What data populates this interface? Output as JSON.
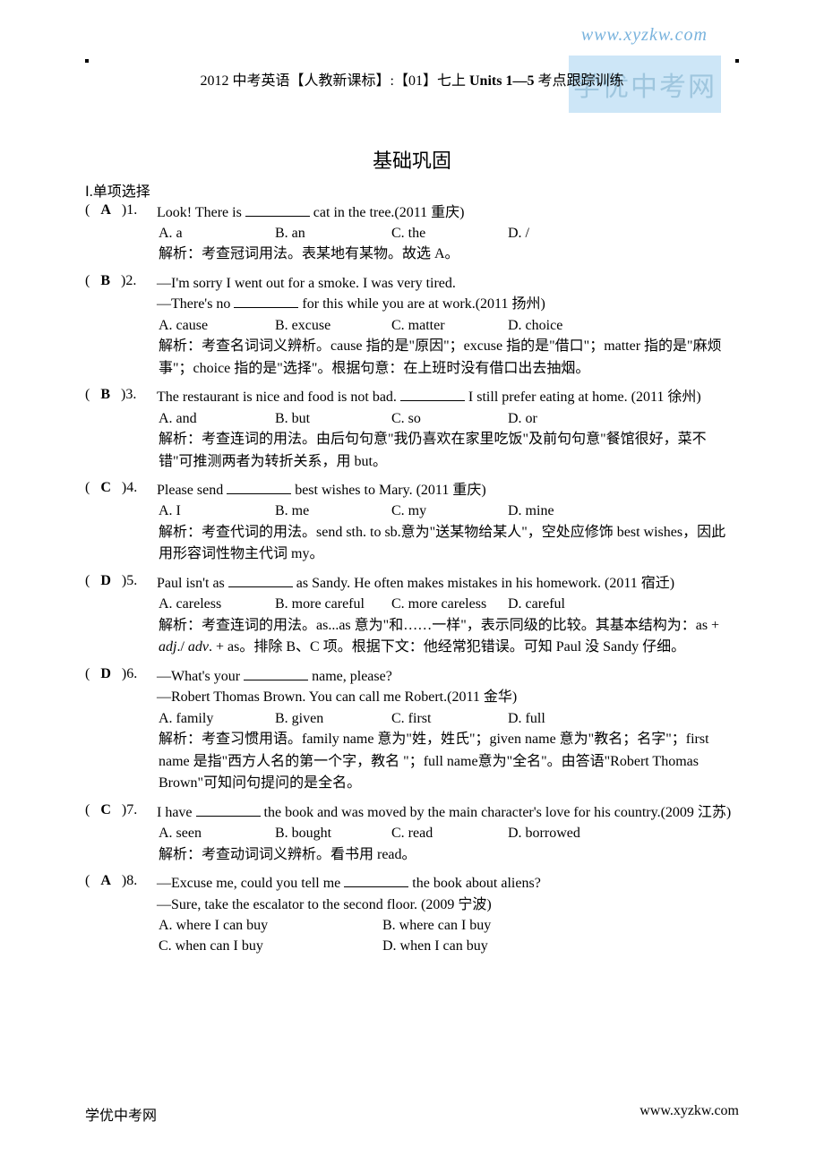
{
  "watermark_url": "www.xyzkw.com",
  "watermark_box": "学优中考网",
  "title_prefix": "2012 中考英语【人教新课标】:【01】七上 ",
  "title_bold": "Units 1—5",
  "title_suffix": " 考点跟踪训练",
  "section_title": "基础巩固",
  "subhead": "Ⅰ.单项选择",
  "questions": [
    {
      "ans": "A",
      "num": "1",
      "stem": "Look! There is ________ cat in the tree.(2011 重庆)",
      "opts": [
        "A. a",
        "B. an",
        "C. the",
        "D. /"
      ],
      "expl": "解析：考查冠词用法。表某地有某物。故选 A。"
    },
    {
      "ans": "B",
      "num": "2",
      "stem": "—I'm sorry I went out for a smoke. I was very tired.",
      "stem2": "—There's no ________ for this while you are at work.(2011 扬州)",
      "opts": [
        "A. cause",
        "B. excuse",
        "C. matter",
        "D. choice"
      ],
      "expl": "解析：考查名词词义辨析。cause 指的是\"原因\"；excuse 指的是\"借口\"；matter 指的是\"麻烦事\"；choice 指的是\"选择\"。根据句意：在上班时没有借口出去抽烟。"
    },
    {
      "ans": "B",
      "num": "3",
      "stem": "The restaurant is nice and food is not bad. ________ I still prefer eating at home. (2011 徐州)",
      "opts": [
        "A. and",
        "B. but",
        "C. so",
        "D. or"
      ],
      "expl": "解析：考查连词的用法。由后句句意\"我仍喜欢在家里吃饭\"及前句句意\"餐馆很好，菜不错\"可推测两者为转折关系，用 but。"
    },
    {
      "ans": "C",
      "num": "4",
      "stem": "Please send ________ best wishes to Mary. (2011 重庆)",
      "opts": [
        "A. I",
        "B. me",
        "C. my",
        "D. mine"
      ],
      "expl": "解析：考查代词的用法。send sth. to sb.意为\"送某物给某人\"，空处应修饰 best wishes，因此用形容词性物主代词 my。"
    },
    {
      "ans": "D",
      "num": "5",
      "stem": "Paul isn't as ________ as Sandy. He often makes mistakes in his homework. (2011 宿迁)",
      "opts": [
        "A. careless",
        "B. more careful",
        "C. more careless",
        "D. careful"
      ],
      "expl_html": "解析：考查连词的用法。as...as 意为\"和……一样\"，表示同级的比较。其基本结构为：as + <em class='i'>adj</em>./ <em class='i'>adv</em>. + as。排除 B、C 项。根据下文：他经常犯错误。可知 Paul 没 Sandy 仔细。"
    },
    {
      "ans": "D",
      "num": "6",
      "stem": "—What's your ________ name, please?",
      "stem2": "—Robert Thomas Brown. You can call me Robert.(2011 金华)",
      "opts": [
        "A. family",
        "B. given",
        "C. first",
        "D. full"
      ],
      "expl": "解析：考查习惯用语。family name 意为\"姓，姓氏\"；given name  意为\"教名；名字\"；first name 是指\"西方人名的第一个字，教名 \"；full name意为\"全名\"。由答语\"Robert Thomas Brown\"可知问句提问的是全名。"
    },
    {
      "ans": "C",
      "num": "7",
      "stem": "I have ________ the book and was moved by the main character's love for his country.(2009  江苏)",
      "opts": [
        "A. seen",
        "B. bought",
        "C. read",
        "D. borrowed"
      ],
      "expl": "解析：考查动词词义辨析。看书用 read。"
    },
    {
      "ans": "A",
      "num": "8",
      "stem": "—Excuse me, could you tell me ________ the book about aliens?",
      "stem2": "—Sure, take the escalator to the second floor. (2009 宁波)",
      "opts2col": true,
      "opts": [
        "A. where I can buy",
        "B. where can I buy",
        "C. when can I buy",
        "D. when I can buy"
      ]
    }
  ],
  "footer_left": "学优中考网",
  "footer_right": "www.xyzkw.com"
}
